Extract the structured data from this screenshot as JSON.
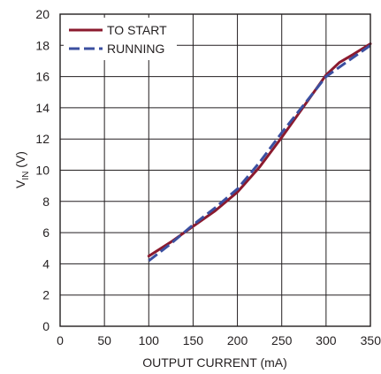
{
  "chart_data": {
    "type": "line",
    "title": "",
    "xlabel": "OUTPUT CURRENT (mA)",
    "ylabel_main": "V",
    "ylabel_sub": "IN",
    "ylabel_unit": " (V)",
    "xlim": [
      0,
      350
    ],
    "ylim": [
      0,
      20
    ],
    "x_ticks": [
      "0",
      "50",
      "100",
      "150",
      "200",
      "250",
      "300",
      "350"
    ],
    "y_ticks": [
      "0",
      "2",
      "4",
      "6",
      "8",
      "10",
      "12",
      "14",
      "16",
      "18",
      "20"
    ],
    "grid": true,
    "legend_position": "top-left",
    "series": [
      {
        "name": "TO START",
        "color": "#8b1a2e",
        "dash": "solid",
        "x": [
          100,
          125,
          150,
          175,
          200,
          225,
          250,
          275,
          300,
          315,
          330,
          350
        ],
        "y": [
          4.5,
          5.4,
          6.4,
          7.4,
          8.6,
          10.2,
          12.1,
          14.1,
          16.1,
          16.9,
          17.4,
          18.1
        ]
      },
      {
        "name": "RUNNING",
        "color": "#3b4fa0",
        "dash": "dashed",
        "x": [
          100,
          125,
          150,
          175,
          200,
          225,
          250,
          275,
          300,
          315,
          330,
          350
        ],
        "y": [
          4.2,
          5.3,
          6.5,
          7.6,
          8.8,
          10.5,
          12.4,
          14.2,
          16.0,
          16.6,
          17.2,
          18.0
        ]
      }
    ]
  }
}
